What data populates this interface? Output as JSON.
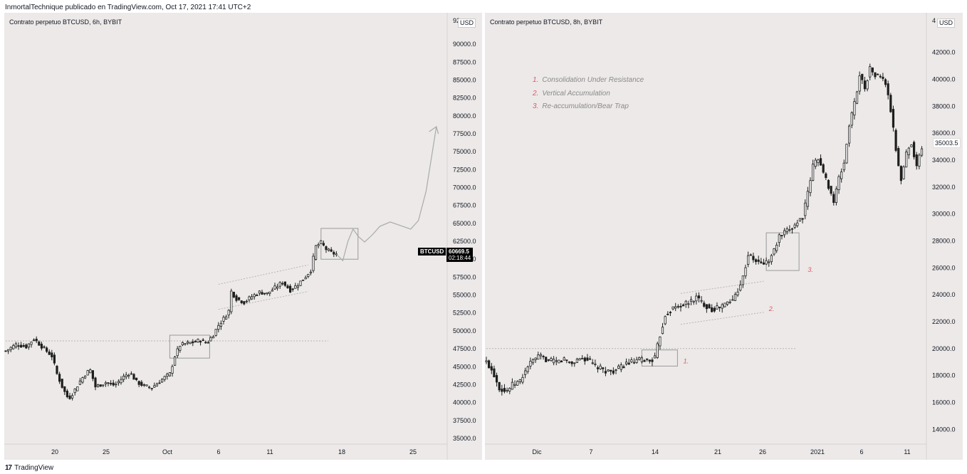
{
  "header": {
    "text": "InmortalTechnique publicado en TradingView.com, Oct 17, 2021 17:41 UTC+2"
  },
  "footer": {
    "logo": "17",
    "brand": "TradingView"
  },
  "colors": {
    "panel_bg": "#ece9e8",
    "candle": "#1e1e1e",
    "marker": "#e0566a",
    "box": "#9a9a9a",
    "projection": "#aaaaaa"
  },
  "left_panel": {
    "title": "Contrato perpetuo BTCUSD, 6h, BYBIT",
    "currency": "USD",
    "y_top_partial": "92",
    "symbol_tag": "BTCUSD",
    "last_price": "60669.5",
    "countdown": "02:18:44"
  },
  "right_panel": {
    "title": "Contrato perpetuo BTCUSD, 8h, BYBIT",
    "currency": "USD",
    "y_top_partial": "4",
    "last_price": "35003.5",
    "legend": [
      {
        "num": "1.",
        "text": "Consolidation Under Resistance"
      },
      {
        "num": "2.",
        "text": "Vertical Accumulation"
      },
      {
        "num": "3.",
        "text": "Re-accumulation/Bear Trap"
      }
    ]
  },
  "chart_data": [
    {
      "type": "candlestick",
      "title": "Contrato perpetuo BTCUSD, 6h, BYBIT",
      "ylim": [
        34000,
        93000
      ],
      "y_ticks": [
        90000,
        87500,
        85000,
        82500,
        80000,
        77500,
        75000,
        72500,
        70000,
        67500,
        65000,
        62500,
        60000,
        57500,
        55000,
        52500,
        50000,
        47500,
        45000,
        42500,
        40000,
        37500,
        35000
      ],
      "y_tick_labels": [
        "90000.0",
        "87500.0",
        "85000.0",
        "82500.0",
        "80000.0",
        "77500.0",
        "75000.0",
        "72500.0",
        "70000.0",
        "67500.0",
        "65000.0",
        "62500.0",
        "60000.0",
        "57500.0",
        "55000.0",
        "52500.0",
        "50000.0",
        "47500.0",
        "45000.0",
        "42500.0",
        "40000.0",
        "37500.0",
        "35000.0"
      ],
      "x_tick_labels": [
        "20",
        "25",
        "Oct",
        "6",
        "11",
        "18",
        "25"
      ],
      "series": [
        {
          "name": "BTCUSD price path (approx.)",
          "points": [
            [
              0,
              47200
            ],
            [
              8,
              48100
            ],
            [
              16,
              47800
            ],
            [
              22,
              48900
            ],
            [
              30,
              47500
            ],
            [
              36,
              46500
            ],
            [
              40,
              44000
            ],
            [
              45,
              41800
            ],
            [
              49,
              40500
            ],
            [
              53,
              41500
            ],
            [
              58,
              43000
            ],
            [
              63,
              44200
            ],
            [
              66,
              44500
            ],
            [
              70,
              42200
            ],
            [
              78,
              42800
            ],
            [
              85,
              42400
            ],
            [
              92,
              43600
            ],
            [
              97,
              44200
            ],
            [
              102,
              42900
            ],
            [
              108,
              42300
            ],
            [
              114,
              42100
            ],
            [
              119,
              42800
            ],
            [
              124,
              43500
            ],
            [
              128,
              44000
            ],
            [
              132,
              46500
            ],
            [
              136,
              48000
            ],
            [
              140,
              48200
            ],
            [
              146,
              48400
            ],
            [
              152,
              48700
            ],
            [
              157,
              48300
            ],
            [
              162,
              49500
            ],
            [
              166,
              50800
            ],
            [
              170,
              51700
            ],
            [
              174,
              52800
            ],
            [
              176,
              55500
            ],
            [
              180,
              54500
            ],
            [
              186,
              54000
            ],
            [
              192,
              54800
            ],
            [
              198,
              55400
            ],
            [
              204,
              55200
            ],
            [
              210,
              56000
            ],
            [
              216,
              56800
            ],
            [
              222,
              55700
            ],
            [
              228,
              56500
            ],
            [
              234,
              57600
            ],
            [
              238,
              58500
            ],
            [
              242,
              61800
            ],
            [
              246,
              62300
            ],
            [
              250,
              61400
            ],
            [
              254,
              60900
            ],
            [
              258,
              60700
            ]
          ]
        },
        {
          "name": "Projection",
          "points": [
            [
              258,
              60700
            ],
            [
              263,
              59800
            ],
            [
              267,
              62500
            ],
            [
              271,
              64200
            ],
            [
              275,
              63200
            ],
            [
              280,
              62400
            ],
            [
              286,
              63400
            ],
            [
              292,
              64600
            ],
            [
              300,
              65200
            ],
            [
              308,
              64700
            ],
            [
              316,
              64200
            ],
            [
              322,
              65400
            ],
            [
              328,
              69500
            ],
            [
              332,
              74000
            ],
            [
              336,
              78500
            ]
          ]
        }
      ]
    },
    {
      "type": "candlestick",
      "title": "Contrato perpetuo BTCUSD, 8h, BYBIT",
      "ylim": [
        12800,
        44200
      ],
      "y_ticks": [
        42000,
        40000,
        38000,
        36000,
        34000,
        32000,
        30000,
        28000,
        26000,
        24000,
        22000,
        20000,
        18000,
        16000,
        14000
      ],
      "y_tick_labels": [
        "42000.0",
        "40000.0",
        "38000.0",
        "36000.0",
        "34000.0",
        "32000.0",
        "30000.0",
        "28000.0",
        "26000.0",
        "24000.0",
        "22000.0",
        "20000.0",
        "18000.0",
        "16000.0",
        "14000.0"
      ],
      "x_tick_labels": [
        "Dic",
        "7",
        "14",
        "21",
        "26",
        "2021",
        "6",
        "11"
      ],
      "annotations": [
        "1.",
        "2.",
        "3."
      ],
      "series": [
        {
          "name": "BTCUSD price path (approx.)",
          "points": [
            [
              0,
              19000
            ],
            [
              5,
              18300
            ],
            [
              10,
              17100
            ],
            [
              15,
              16800
            ],
            [
              20,
              17300
            ],
            [
              26,
              17600
            ],
            [
              32,
              18700
            ],
            [
              38,
              19300
            ],
            [
              42,
              19400
            ],
            [
              48,
              19100
            ],
            [
              54,
              19000
            ],
            [
              60,
              19200
            ],
            [
              66,
              18900
            ],
            [
              72,
              19300
            ],
            [
              78,
              19200
            ],
            [
              84,
              18700
            ],
            [
              90,
              18400
            ],
            [
              96,
              18300
            ],
            [
              102,
              18500
            ],
            [
              108,
              18900
            ],
            [
              114,
              19000
            ],
            [
              120,
              19200
            ],
            [
              126,
              19100
            ],
            [
              130,
              19300
            ],
            [
              134,
              21000
            ],
            [
              138,
              22500
            ],
            [
              144,
              23000
            ],
            [
              150,
              23200
            ],
            [
              156,
              23400
            ],
            [
              162,
              23800
            ],
            [
              168,
              23300
            ],
            [
              174,
              22900
            ],
            [
              180,
              23100
            ],
            [
              186,
              23400
            ],
            [
              190,
              23600
            ],
            [
              194,
              24400
            ],
            [
              198,
              25300
            ],
            [
              202,
              27000
            ],
            [
              206,
              26600
            ],
            [
              212,
              26300
            ],
            [
              218,
              26500
            ],
            [
              222,
              27300
            ],
            [
              226,
              28300
            ],
            [
              232,
              28700
            ],
            [
              238,
              29200
            ],
            [
              244,
              29800
            ],
            [
              248,
              31500
            ],
            [
              252,
              33600
            ],
            [
              256,
              34200
            ],
            [
              260,
              33000
            ],
            [
              264,
              32100
            ],
            [
              268,
              30900
            ],
            [
              272,
              32600
            ],
            [
              276,
              33800
            ],
            [
              280,
              36600
            ],
            [
              284,
              38200
            ],
            [
              288,
              40300
            ],
            [
              292,
              39400
            ],
            [
              296,
              40800
            ],
            [
              300,
              40300
            ],
            [
              304,
              40200
            ],
            [
              308,
              39700
            ],
            [
              312,
              37700
            ],
            [
              316,
              34800
            ],
            [
              320,
              32500
            ],
            [
              324,
              34500
            ],
            [
              328,
              35300
            ],
            [
              332,
              33500
            ],
            [
              336,
              35000
            ]
          ]
        }
      ]
    }
  ]
}
